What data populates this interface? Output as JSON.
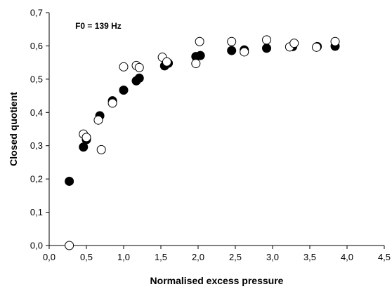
{
  "chart_data": {
    "type": "scatter",
    "title": "",
    "annotation": "F0 = 139 Hz",
    "xlabel": "Normalised excess pressure",
    "ylabel": "Closed quotient",
    "xlim": [
      0,
      4.5
    ],
    "ylim": [
      0,
      0.7
    ],
    "x_ticks": [
      "0,0",
      "0,5",
      "1,0",
      "1,5",
      "2,0",
      "2,5",
      "3,0",
      "3,5",
      "4,0",
      "4,5"
    ],
    "y_ticks": [
      "0,0",
      "0,1",
      "0,2",
      "0,3",
      "0,4",
      "0,5",
      "0,6",
      "0,7"
    ],
    "grid": false,
    "legend": "none",
    "series": [
      {
        "marker": "filled-circle",
        "color": "#000000",
        "points": [
          [
            0.27,
            0.193
          ],
          [
            0.46,
            0.296
          ],
          [
            0.5,
            0.318
          ],
          [
            0.68,
            0.39
          ],
          [
            0.85,
            0.435
          ],
          [
            1.0,
            0.467
          ],
          [
            1.17,
            0.495
          ],
          [
            1.21,
            0.503
          ],
          [
            1.55,
            0.54
          ],
          [
            1.6,
            0.548
          ],
          [
            1.97,
            0.568
          ],
          [
            2.03,
            0.571
          ],
          [
            2.45,
            0.586
          ],
          [
            2.62,
            0.588
          ],
          [
            2.92,
            0.593
          ],
          [
            3.27,
            0.598
          ],
          [
            3.6,
            0.598
          ],
          [
            3.84,
            0.599
          ]
        ]
      },
      {
        "marker": "open-circle",
        "color": "#000000",
        "points": [
          [
            0.27,
            0.0
          ],
          [
            0.46,
            0.335
          ],
          [
            0.5,
            0.325
          ],
          [
            0.66,
            0.377
          ],
          [
            0.7,
            0.288
          ],
          [
            0.85,
            0.428
          ],
          [
            1.0,
            0.537
          ],
          [
            1.17,
            0.541
          ],
          [
            1.21,
            0.535
          ],
          [
            1.52,
            0.566
          ],
          [
            1.58,
            0.552
          ],
          [
            1.97,
            0.547
          ],
          [
            2.02,
            0.613
          ],
          [
            2.45,
            0.613
          ],
          [
            2.62,
            0.582
          ],
          [
            2.92,
            0.618
          ],
          [
            3.23,
            0.597
          ],
          [
            3.29,
            0.608
          ],
          [
            3.59,
            0.596
          ],
          [
            3.84,
            0.613
          ]
        ]
      }
    ]
  }
}
